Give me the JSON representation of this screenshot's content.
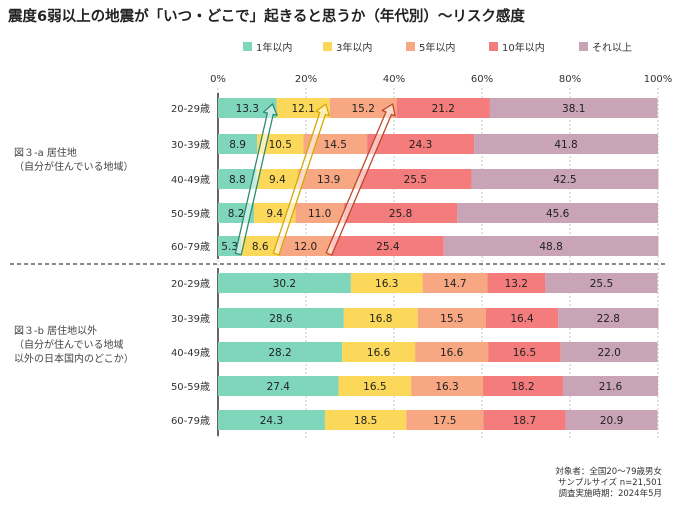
{
  "chart_data": {
    "type": "bar",
    "orientation": "horizontal",
    "stacked": "percent",
    "title": "震度6弱以上の地震が「いつ・どこで」起きると思うか（年代別）～リスク感度",
    "xlim": [
      0,
      100
    ],
    "x_ticks": [
      "0%",
      "20%",
      "40%",
      "60%",
      "80%",
      "100%"
    ],
    "grid": true,
    "legend_position": "top",
    "legend": [
      {
        "name": "1年以内",
        "color": "#7fd6bb"
      },
      {
        "name": "3年以内",
        "color": "#fcd85a"
      },
      {
        "name": "5年以内",
        "color": "#f7a883"
      },
      {
        "name": "10年以内",
        "color": "#f47c7c"
      },
      {
        "name": "それ以上",
        "color": "#c9a4b7"
      }
    ],
    "groups": [
      {
        "label_lines": [
          "図３-a 居住地",
          "（自分が住んでいる地域）"
        ],
        "rows": [
          {
            "category": "20-29歳",
            "values": [
              13.3,
              12.1,
              15.2,
              21.2,
              38.1
            ]
          },
          {
            "category": "30-39歳",
            "values": [
              8.9,
              10.5,
              14.5,
              24.3,
              41.8
            ]
          },
          {
            "category": "40-49歳",
            "values": [
              8.8,
              9.4,
              13.9,
              25.5,
              42.5
            ]
          },
          {
            "category": "50-59歳",
            "values": [
              8.2,
              9.4,
              11.0,
              25.8,
              45.6
            ]
          },
          {
            "category": "60-79歳",
            "values": [
              5.3,
              8.6,
              12.0,
              25.4,
              48.8
            ]
          }
        ]
      },
      {
        "label_lines": [
          "図３-b 居住地以外",
          "（自分が住んでいる地域",
          "以外の日本国内のどこか）"
        ],
        "rows": [
          {
            "category": "20-29歳",
            "values": [
              30.2,
              16.3,
              14.7,
              13.2,
              25.5
            ]
          },
          {
            "category": "30-39歳",
            "values": [
              28.6,
              16.8,
              15.5,
              16.4,
              22.8
            ]
          },
          {
            "category": "40-49歳",
            "values": [
              28.2,
              16.6,
              16.6,
              16.5,
              22.0
            ]
          },
          {
            "category": "50-59歳",
            "values": [
              27.4,
              16.5,
              16.3,
              18.2,
              21.6
            ]
          },
          {
            "category": "60-79歳",
            "values": [
              24.3,
              18.5,
              17.5,
              18.7,
              20.9
            ]
          }
        ]
      }
    ],
    "trend_arrows": [
      {
        "series": "1年以内",
        "from": "60-79歳",
        "to": "20-29歳",
        "color": "#2e8b6e"
      },
      {
        "series": "3年以内",
        "from": "60-79歳",
        "to": "20-29歳",
        "color": "#d4a800"
      },
      {
        "series": "5年以内",
        "from": "60-79歳",
        "to": "20-29歳",
        "color": "#c0462a"
      }
    ],
    "notes": [
      "対象者：全国20～79歳男女",
      "サンプルサイズ n=21,501",
      "調査実施時期：2024年5月"
    ]
  }
}
